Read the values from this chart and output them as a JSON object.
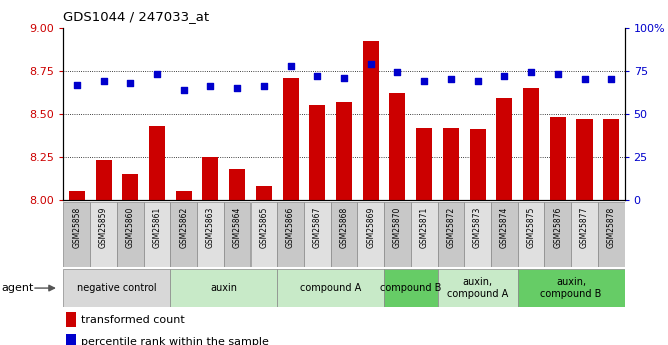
{
  "title": "GDS1044 / 247033_at",
  "samples": [
    "GSM25858",
    "GSM25859",
    "GSM25860",
    "GSM25861",
    "GSM25862",
    "GSM25863",
    "GSM25864",
    "GSM25865",
    "GSM25866",
    "GSM25867",
    "GSM25868",
    "GSM25869",
    "GSM25870",
    "GSM25871",
    "GSM25872",
    "GSM25873",
    "GSM25874",
    "GSM25875",
    "GSM25876",
    "GSM25877",
    "GSM25878"
  ],
  "bar_values": [
    8.05,
    8.23,
    8.15,
    8.43,
    8.05,
    8.25,
    8.18,
    8.08,
    8.71,
    8.55,
    8.57,
    8.92,
    8.62,
    8.42,
    8.42,
    8.41,
    8.59,
    8.65,
    8.48,
    8.47,
    8.47
  ],
  "dot_values": [
    67,
    69,
    68,
    73,
    64,
    66,
    65,
    66,
    78,
    72,
    71,
    79,
    74,
    69,
    70,
    69,
    72,
    74,
    73,
    70,
    70
  ],
  "ylim_left": [
    8.0,
    9.0
  ],
  "yticks_left": [
    8.0,
    8.25,
    8.5,
    8.75,
    9.0
  ],
  "yticks_right": [
    0,
    25,
    50,
    75,
    100
  ],
  "grid_values": [
    8.25,
    8.5,
    8.75
  ],
  "bar_color": "#cc0000",
  "dot_color": "#0000cc",
  "groups": [
    {
      "label": "negative control",
      "start": 0,
      "end": 4,
      "color": "#d8d8d8"
    },
    {
      "label": "auxin",
      "start": 4,
      "end": 8,
      "color": "#c8eac8"
    },
    {
      "label": "compound A",
      "start": 8,
      "end": 12,
      "color": "#c8eac8"
    },
    {
      "label": "compound B",
      "start": 12,
      "end": 14,
      "color": "#66cc66"
    },
    {
      "label": "auxin,\ncompound A",
      "start": 14,
      "end": 17,
      "color": "#c8eac8"
    },
    {
      "label": "auxin,\ncompound B",
      "start": 17,
      "end": 21,
      "color": "#66cc66"
    }
  ],
  "legend_bar_label": "transformed count",
  "legend_dot_label": "percentile rank within the sample",
  "agent_label": "agent",
  "tick_label_color_left": "#cc0000",
  "tick_label_color_right": "#0000cc",
  "xlabel_box_color_odd": "#c8c8c8",
  "xlabel_box_color_even": "#e0e0e0"
}
